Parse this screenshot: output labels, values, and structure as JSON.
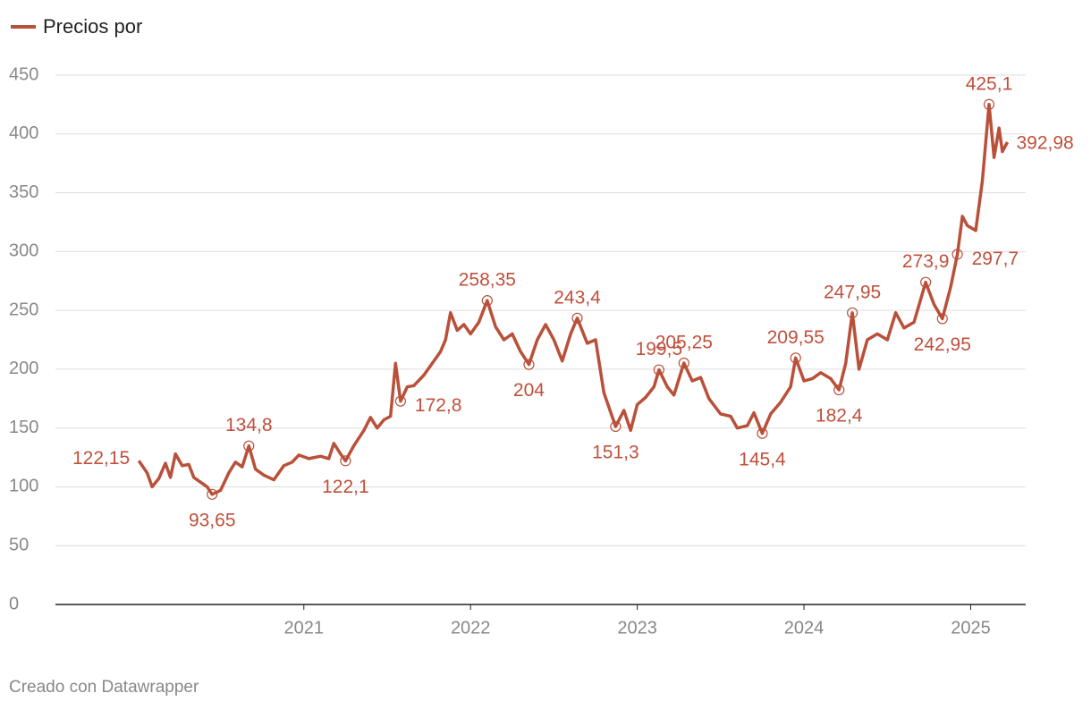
{
  "chart_data": {
    "type": "line",
    "legend_position": "top-left",
    "footer": "Creado con Datawrapper",
    "xlim": [
      2019.51,
      2025.33
    ],
    "xticks": [
      2021,
      2022,
      2023,
      2024,
      2025
    ],
    "ylim": [
      0,
      450
    ],
    "yticks": [
      0,
      50,
      100,
      150,
      200,
      250,
      300,
      350,
      400,
      450
    ],
    "grid": true,
    "x": [
      2020.01,
      2020.06,
      2020.09,
      2020.13,
      2020.17,
      2020.2,
      2020.23,
      2020.27,
      2020.31,
      2020.34,
      2020.38,
      2020.42,
      2020.45,
      2020.5,
      2020.55,
      2020.59,
      2020.63,
      2020.67,
      2020.71,
      2020.76,
      2020.82,
      2020.88,
      2020.93,
      2020.97,
      2021.03,
      2021.1,
      2021.15,
      2021.18,
      2021.22,
      2021.25,
      2021.3,
      2021.36,
      2021.4,
      2021.44,
      2021.48,
      2021.52,
      2021.55,
      2021.58,
      2021.62,
      2021.66,
      2021.72,
      2021.78,
      2021.82,
      2021.85,
      2021.88,
      2021.92,
      2021.96,
      2022.0,
      2022.05,
      2022.1,
      2022.15,
      2022.2,
      2022.25,
      2022.3,
      2022.35,
      2022.4,
      2022.45,
      2022.5,
      2022.55,
      2022.6,
      2022.64,
      2022.7,
      2022.75,
      2022.8,
      2022.87,
      2022.92,
      2022.96,
      2023.0,
      2023.05,
      2023.1,
      2023.13,
      2023.18,
      2023.22,
      2023.28,
      2023.33,
      2023.38,
      2023.43,
      2023.5,
      2023.56,
      2023.6,
      2023.66,
      2023.7,
      2023.75,
      2023.8,
      2023.86,
      2023.92,
      2023.95,
      2024.0,
      2024.05,
      2024.1,
      2024.16,
      2024.21,
      2024.25,
      2024.29,
      2024.33,
      2024.38,
      2024.44,
      2024.5,
      2024.55,
      2024.6,
      2024.66,
      2024.73,
      2024.78,
      2024.83,
      2024.88,
      2024.92,
      2024.95,
      2024.98,
      2025.03,
      2025.07,
      2025.11,
      2025.14,
      2025.17,
      2025.19,
      2025.22
    ],
    "series": [
      {
        "name": "Precios por",
        "color": "#b9503a",
        "values": [
          122.15,
          112,
          100,
          107,
          120,
          108,
          128,
          118,
          119,
          108,
          104,
          100,
          93.65,
          97,
          112,
          121,
          117,
          134.8,
          115,
          110,
          106,
          118,
          121,
          127,
          124,
          126,
          124,
          137,
          128,
          122.1,
          135,
          148,
          159,
          150,
          157,
          160,
          205,
          172.8,
          185,
          186,
          195,
          207,
          215,
          225,
          248,
          233,
          238,
          230,
          240,
          258.35,
          236,
          225,
          230,
          215,
          204,
          225,
          238,
          225,
          207,
          230,
          243.4,
          222,
          225,
          180,
          151.3,
          165,
          148,
          170,
          176,
          185,
          199.5,
          185,
          178,
          205.25,
          190,
          193,
          175,
          162,
          160,
          150,
          152,
          163,
          145.4,
          162,
          172,
          185,
          209.55,
          190,
          192,
          197,
          192,
          182.4,
          205,
          247.95,
          200,
          225,
          230,
          225,
          248,
          235,
          240,
          273.9,
          255,
          242.95,
          270,
          297.7,
          330,
          322,
          318,
          360,
          425.1,
          380,
          405,
          385,
          392.98
        ]
      }
    ],
    "annotations": [
      {
        "x": 2020.01,
        "value": 122.15,
        "label": "122,15",
        "position": "left",
        "circle": false
      },
      {
        "x": 2020.45,
        "value": 93.65,
        "label": "93,65",
        "position": "below",
        "circle": true
      },
      {
        "x": 2020.67,
        "value": 134.8,
        "label": "134,8",
        "position": "above",
        "circle": true
      },
      {
        "x": 2021.25,
        "value": 122.1,
        "label": "122,1",
        "position": "below",
        "circle": true
      },
      {
        "x": 2021.58,
        "value": 172.8,
        "label": "172,8",
        "position": "right",
        "circle": true
      },
      {
        "x": 2022.1,
        "value": 258.35,
        "label": "258,35",
        "position": "above",
        "circle": true
      },
      {
        "x": 2022.35,
        "value": 204,
        "label": "204",
        "position": "below",
        "circle": true
      },
      {
        "x": 2022.64,
        "value": 243.4,
        "label": "243,4",
        "position": "above",
        "circle": true
      },
      {
        "x": 2022.87,
        "value": 151.3,
        "label": "151,3",
        "position": "below",
        "circle": true
      },
      {
        "x": 2023.13,
        "value": 199.5,
        "label": "199,5",
        "position": "above",
        "circle": true
      },
      {
        "x": 2023.28,
        "value": 205.25,
        "label": "205,25",
        "position": "above",
        "circle": true
      },
      {
        "x": 2023.75,
        "value": 145.4,
        "label": "145,4",
        "position": "below",
        "circle": true
      },
      {
        "x": 2023.95,
        "value": 209.55,
        "label": "209,55",
        "position": "above",
        "circle": true
      },
      {
        "x": 2024.21,
        "value": 182.4,
        "label": "182,4",
        "position": "below",
        "circle": true
      },
      {
        "x": 2024.29,
        "value": 247.95,
        "label": "247,95",
        "position": "above",
        "circle": true
      },
      {
        "x": 2024.73,
        "value": 273.9,
        "label": "273,9",
        "position": "above",
        "circle": true
      },
      {
        "x": 2024.83,
        "value": 242.95,
        "label": "242,95",
        "position": "below",
        "circle": true
      },
      {
        "x": 2024.92,
        "value": 297.7,
        "label": "297,7",
        "position": "right",
        "circle": true
      },
      {
        "x": 2025.11,
        "value": 425.1,
        "label": "425,1",
        "position": "above",
        "circle": true
      },
      {
        "x": 2025.22,
        "value": 392.98,
        "label": "392,98",
        "position": "right",
        "circle": false
      }
    ]
  }
}
